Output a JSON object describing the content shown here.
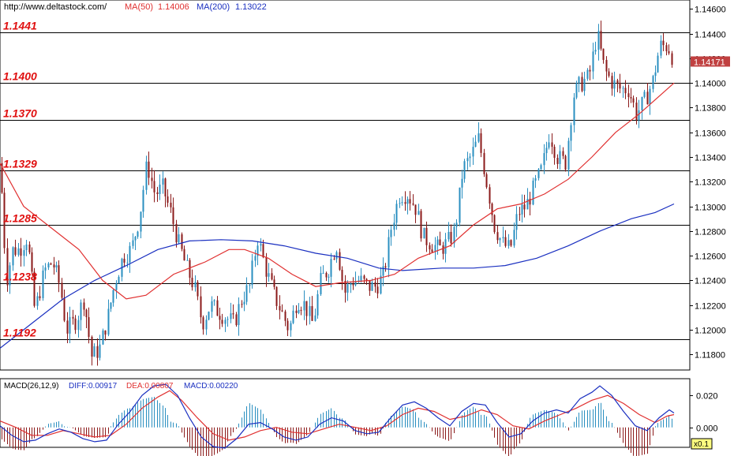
{
  "header": {
    "url": "http://www.deltastock.com/",
    "ma50_label": "MA(50)",
    "ma50_value": "1.14006",
    "ma200_label": "MA(200)",
    "ma200_value": "1.13022"
  },
  "colors": {
    "up_candle": "#2a8fc0",
    "down_candle": "#8b1a1a",
    "ma50": "#e03030",
    "ma200": "#1a2fc0",
    "level_line": "#000000",
    "level_label": "#e01010",
    "macd_diff": "#1a2fc0",
    "macd_dea": "#e03030",
    "hist_pos": "#2a8fc0",
    "hist_neg": "#8b1a1a",
    "price_badge": "#c04040"
  },
  "chart_data": [
    {
      "type": "candlestick",
      "ylim": [
        1.1168,
        1.1466
      ],
      "y_ticks": [
        "1.11800",
        "1.12000",
        "1.12200",
        "1.12400",
        "1.12600",
        "1.12800",
        "1.13000",
        "1.13200",
        "1.13400",
        "1.13600",
        "1.13800",
        "1.14000",
        "1.14200",
        "1.14400",
        "1.14600"
      ],
      "current_price": "1.14171",
      "levels": [
        {
          "value": 1.1441,
          "label": "1.1441"
        },
        {
          "value": 1.14,
          "label": "1.1400"
        },
        {
          "value": 1.137,
          "label": "1.1370"
        },
        {
          "value": 1.1329,
          "label": "1.1329"
        },
        {
          "value": 1.1285,
          "label": "1.1285"
        },
        {
          "value": 1.1238,
          "label": "1.1238"
        },
        {
          "value": 1.1192,
          "label": "1.1192"
        }
      ],
      "close_path": [
        [
          0,
          1.1335
        ],
        [
          8,
          1.124
        ],
        [
          16,
          1.1265
        ],
        [
          24,
          1.1265
        ],
        [
          34,
          1.1275
        ],
        [
          44,
          1.1215
        ],
        [
          56,
          1.1248
        ],
        [
          66,
          1.1255
        ],
        [
          76,
          1.1235
        ],
        [
          84,
          1.12
        ],
        [
          96,
          1.1208
        ],
        [
          106,
          1.1225
        ],
        [
          116,
          1.1178
        ],
        [
          126,
          1.1185
        ],
        [
          136,
          1.121
        ],
        [
          146,
          1.124
        ],
        [
          156,
          1.126
        ],
        [
          166,
          1.1265
        ],
        [
          176,
          1.129
        ],
        [
          186,
          1.1335
        ],
        [
          196,
          1.131
        ],
        [
          206,
          1.1315
        ],
        [
          216,
          1.1295
        ],
        [
          226,
          1.127
        ],
        [
          236,
          1.125
        ],
        [
          246,
          1.1235
        ],
        [
          256,
          1.1205
        ],
        [
          266,
          1.122
        ],
        [
          276,
          1.1215
        ],
        [
          286,
          1.121
        ],
        [
          296,
          1.1205
        ],
        [
          306,
          1.1225
        ],
        [
          316,
          1.1235
        ],
        [
          326,
          1.1275
        ],
        [
          336,
          1.125
        ],
        [
          346,
          1.123
        ],
        [
          356,
          1.1215
        ],
        [
          366,
          1.12
        ],
        [
          376,
          1.1225
        ],
        [
          386,
          1.122
        ],
        [
          396,
          1.1205
        ],
        [
          406,
          1.124
        ],
        [
          416,
          1.125
        ],
        [
          426,
          1.127
        ],
        [
          436,
          1.123
        ],
        [
          446,
          1.124
        ],
        [
          456,
          1.124
        ],
        [
          466,
          1.1235
        ],
        [
          476,
          1.1235
        ],
        [
          486,
          1.1245
        ],
        [
          496,
          1.1285
        ],
        [
          506,
          1.131
        ],
        [
          516,
          1.131
        ],
        [
          526,
          1.13
        ],
        [
          536,
          1.1275
        ],
        [
          546,
          1.127
        ],
        [
          556,
          1.1265
        ],
        [
          566,
          1.127
        ],
        [
          576,
          1.128
        ],
        [
          586,
          1.133
        ],
        [
          596,
          1.134
        ],
        [
          606,
          1.1355
        ],
        [
          616,
          1.132
        ],
        [
          626,
          1.1285
        ],
        [
          636,
          1.127
        ],
        [
          646,
          1.1265
        ],
        [
          656,
          1.1295
        ],
        [
          666,
          1.13
        ],
        [
          676,
          1.1315
        ],
        [
          686,
          1.133
        ],
        [
          696,
          1.136
        ],
        [
          706,
          1.134
        ],
        [
          716,
          1.1335
        ],
        [
          726,
          1.139
        ],
        [
          736,
          1.14
        ],
        [
          746,
          1.1405
        ],
        [
          756,
          1.144
        ],
        [
          766,
          1.141
        ],
        [
          776,
          1.14
        ],
        [
          786,
          1.1395
        ],
        [
          796,
          1.1395
        ],
        [
          806,
          1.1375
        ],
        [
          816,
          1.1385
        ],
        [
          826,
          1.14
        ],
        [
          836,
          1.143
        ],
        [
          846,
          1.143
        ],
        [
          854,
          1.1417
        ]
      ],
      "ma50_path": [
        [
          0,
          1.1335
        ],
        [
          30,
          1.13
        ],
        [
          60,
          1.1285
        ],
        [
          100,
          1.1265
        ],
        [
          130,
          1.124
        ],
        [
          160,
          1.1225
        ],
        [
          185,
          1.1228
        ],
        [
          220,
          1.1245
        ],
        [
          260,
          1.1255
        ],
        [
          290,
          1.1265
        ],
        [
          310,
          1.1265
        ],
        [
          340,
          1.1258
        ],
        [
          370,
          1.1245
        ],
        [
          400,
          1.1235
        ],
        [
          430,
          1.1238
        ],
        [
          470,
          1.124
        ],
        [
          500,
          1.1245
        ],
        [
          530,
          1.1258
        ],
        [
          570,
          1.1268
        ],
        [
          600,
          1.1285
        ],
        [
          630,
          1.1298
        ],
        [
          660,
          1.1302
        ],
        [
          690,
          1.131
        ],
        [
          720,
          1.1322
        ],
        [
          750,
          1.134
        ],
        [
          780,
          1.136
        ],
        [
          810,
          1.1375
        ],
        [
          840,
          1.1392
        ],
        [
          854,
          1.14
        ]
      ],
      "ma200_path": [
        [
          0,
          1.1185
        ],
        [
          40,
          1.1205
        ],
        [
          80,
          1.1225
        ],
        [
          120,
          1.124
        ],
        [
          160,
          1.1252
        ],
        [
          200,
          1.1265
        ],
        [
          240,
          1.1272
        ],
        [
          280,
          1.1273
        ],
        [
          320,
          1.1272
        ],
        [
          360,
          1.1268
        ],
        [
          400,
          1.1262
        ],
        [
          440,
          1.1258
        ],
        [
          480,
          1.125
        ],
        [
          510,
          1.1248
        ],
        [
          560,
          1.125
        ],
        [
          600,
          1.125
        ],
        [
          640,
          1.1252
        ],
        [
          680,
          1.1258
        ],
        [
          720,
          1.1268
        ],
        [
          760,
          1.128
        ],
        [
          800,
          1.129
        ],
        [
          830,
          1.1295
        ],
        [
          854,
          1.1302
        ]
      ]
    },
    {
      "type": "macd",
      "label": "MACD(26,12,9)",
      "diff_label": "DIFF:0.00917",
      "dea_label": "DEA:0.00807",
      "macd_label": "MACD:0.00220",
      "ylim": [
        -0.012,
        0.03
      ],
      "y_ticks": [
        "0.020",
        "0.000"
      ],
      "scale_badge": "x0.1",
      "diff_path": [
        [
          0,
          0.001
        ],
        [
          15,
          -0.005
        ],
        [
          30,
          -0.009
        ],
        [
          45,
          -0.008
        ],
        [
          60,
          -0.004
        ],
        [
          75,
          -0.001
        ],
        [
          90,
          -0.003
        ],
        [
          105,
          -0.007
        ],
        [
          120,
          -0.009
        ],
        [
          135,
          -0.008
        ],
        [
          150,
          0.002
        ],
        [
          165,
          0.01
        ],
        [
          180,
          0.02
        ],
        [
          195,
          0.026
        ],
        [
          210,
          0.027
        ],
        [
          225,
          0.02
        ],
        [
          240,
          0.006
        ],
        [
          255,
          -0.006
        ],
        [
          270,
          -0.012
        ],
        [
          285,
          -0.013
        ],
        [
          300,
          -0.007
        ],
        [
          315,
          0.002
        ],
        [
          330,
          0.003
        ],
        [
          345,
          -0.001
        ],
        [
          360,
          -0.006
        ],
        [
          375,
          -0.008
        ],
        [
          390,
          -0.006
        ],
        [
          405,
          0.002
        ],
        [
          420,
          0.006
        ],
        [
          435,
          0.004
        ],
        [
          450,
          -0.002
        ],
        [
          465,
          -0.004
        ],
        [
          480,
          -0.003
        ],
        [
          495,
          0.006
        ],
        [
          510,
          0.014
        ],
        [
          525,
          0.016
        ],
        [
          540,
          0.012
        ],
        [
          555,
          0.006
        ],
        [
          570,
          0.001
        ],
        [
          585,
          0.01
        ],
        [
          600,
          0.015
        ],
        [
          615,
          0.014
        ],
        [
          630,
          0.003
        ],
        [
          645,
          -0.006
        ],
        [
          660,
          -0.004
        ],
        [
          675,
          0.004
        ],
        [
          690,
          0.009
        ],
        [
          705,
          0.011
        ],
        [
          720,
          0.009
        ],
        [
          735,
          0.018
        ],
        [
          750,
          0.022
        ],
        [
          760,
          0.026
        ],
        [
          775,
          0.02
        ],
        [
          790,
          0.01
        ],
        [
          805,
          0.001
        ],
        [
          820,
          -0.002
        ],
        [
          835,
          0.006
        ],
        [
          848,
          0.011
        ],
        [
          854,
          0.009
        ]
      ],
      "dea_path": [
        [
          0,
          0.004
        ],
        [
          20,
          0.0
        ],
        [
          40,
          -0.005
        ],
        [
          60,
          -0.005
        ],
        [
          80,
          -0.002
        ],
        [
          100,
          -0.004
        ],
        [
          120,
          -0.006
        ],
        [
          140,
          -0.005
        ],
        [
          160,
          0.002
        ],
        [
          180,
          0.012
        ],
        [
          200,
          0.019
        ],
        [
          215,
          0.023
        ],
        [
          230,
          0.017
        ],
        [
          250,
          0.006
        ],
        [
          270,
          -0.004
        ],
        [
          290,
          -0.008
        ],
        [
          310,
          -0.006
        ],
        [
          330,
          -0.002
        ],
        [
          350,
          0.0
        ],
        [
          370,
          -0.003
        ],
        [
          390,
          -0.004
        ],
        [
          410,
          -0.001
        ],
        [
          430,
          0.002
        ],
        [
          450,
          0.0
        ],
        [
          470,
          -0.002
        ],
        [
          490,
          0.001
        ],
        [
          510,
          0.008
        ],
        [
          530,
          0.012
        ],
        [
          550,
          0.01
        ],
        [
          570,
          0.005
        ],
        [
          590,
          0.007
        ],
        [
          610,
          0.011
        ],
        [
          630,
          0.008
        ],
        [
          650,
          0.001
        ],
        [
          670,
          -0.001
        ],
        [
          690,
          0.004
        ],
        [
          710,
          0.008
        ],
        [
          730,
          0.012
        ],
        [
          750,
          0.017
        ],
        [
          770,
          0.02
        ],
        [
          790,
          0.015
        ],
        [
          810,
          0.008
        ],
        [
          830,
          0.003
        ],
        [
          845,
          0.007
        ],
        [
          854,
          0.008
        ]
      ]
    }
  ]
}
